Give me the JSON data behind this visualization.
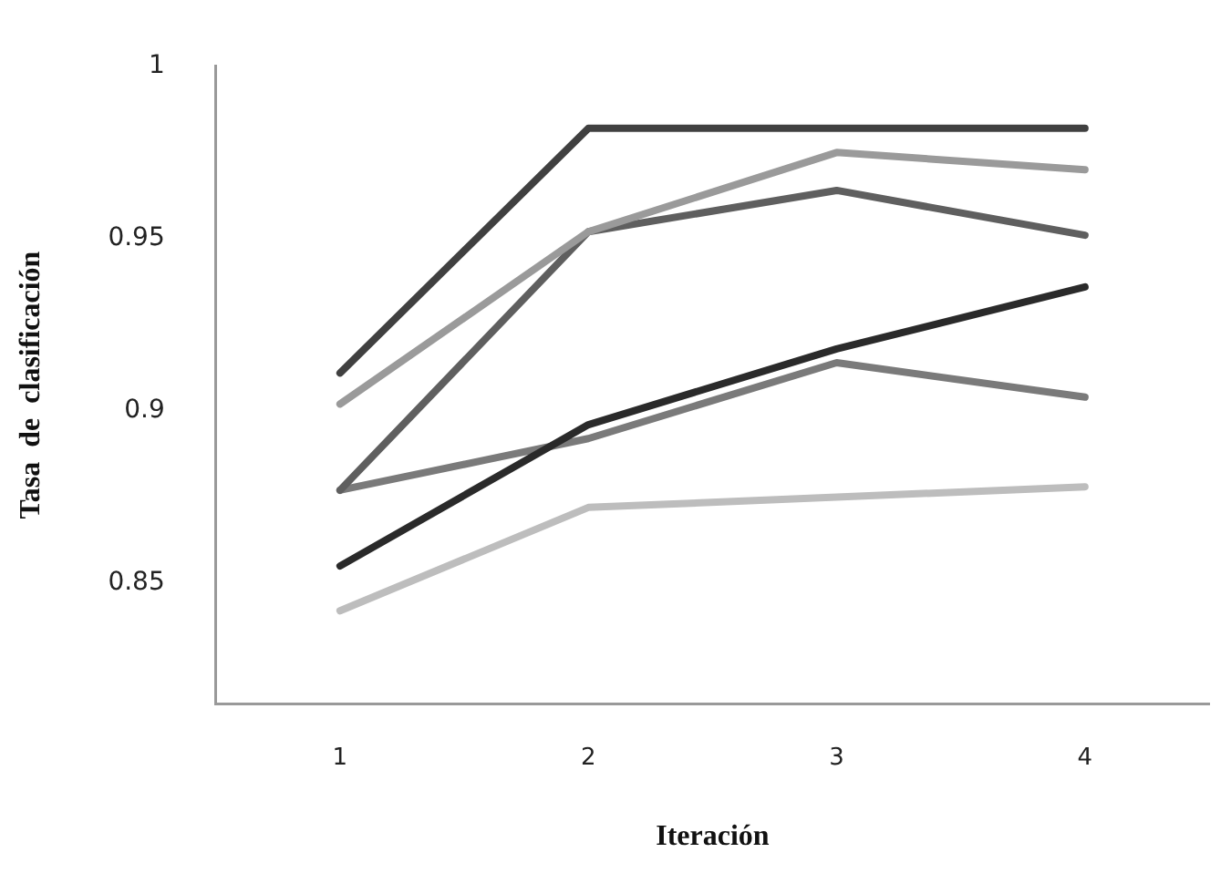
{
  "chart_data": {
    "type": "line",
    "xlabel": "Iteración",
    "ylabel": "Tasa  de  clasificación",
    "categories": [
      "1",
      "2",
      "3",
      "4"
    ],
    "series": [
      {
        "color": "#404040",
        "values": [
          0.911,
          0.982,
          0.982,
          0.982
        ]
      },
      {
        "color": "#9a9a9a",
        "values": [
          0.902,
          0.952,
          0.975,
          0.97
        ]
      },
      {
        "color": "#5f5f5f",
        "values": [
          0.877,
          0.952,
          0.964,
          0.951
        ]
      },
      {
        "color": "#2a2a2a",
        "values": [
          0.855,
          0.896,
          0.918,
          0.936
        ]
      },
      {
        "color": "#7a7a7a",
        "values": [
          0.877,
          0.892,
          0.914,
          0.904
        ]
      },
      {
        "color": "#bdbdbd",
        "values": [
          0.842,
          0.872,
          0.875,
          0.878
        ]
      }
    ],
    "ylim": [
      0.815,
      1
    ],
    "yticks": [
      0.85,
      0.9,
      0.95,
      1
    ],
    "grid": false,
    "legend": false,
    "marker": "none",
    "line_style": "solid"
  }
}
